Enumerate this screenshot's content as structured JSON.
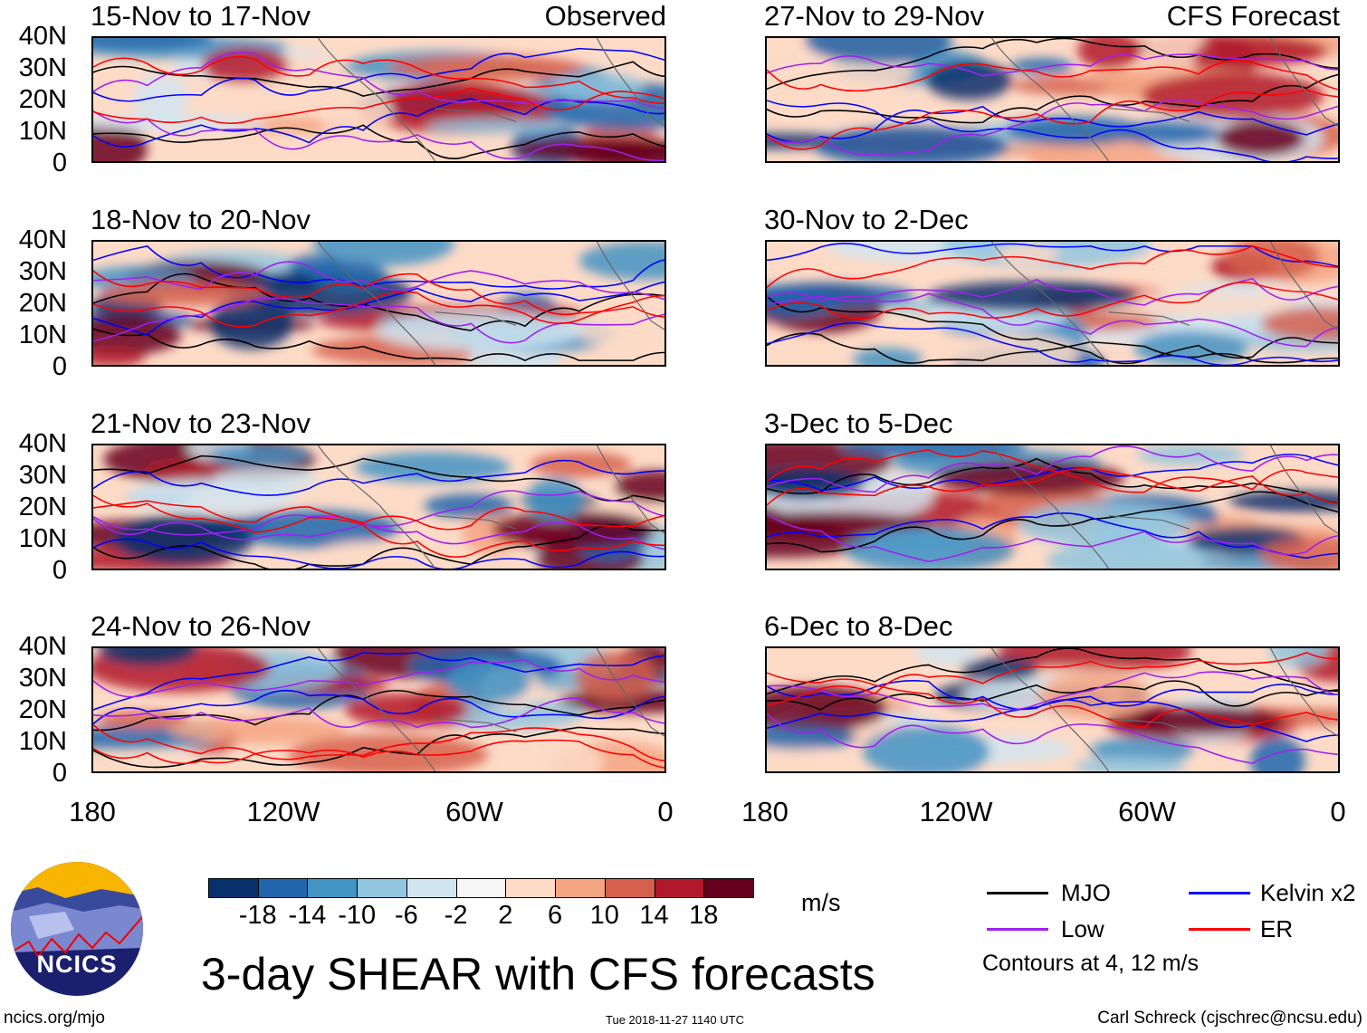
{
  "panels": [
    {
      "title": "15-Nov to 17-Nov",
      "tag": "Observed"
    },
    {
      "title": "27-Nov to 29-Nov",
      "tag": "CFS Forecast"
    },
    {
      "title": "18-Nov to 20-Nov",
      "tag": ""
    },
    {
      "title": "30-Nov to 2-Dec",
      "tag": ""
    },
    {
      "title": "21-Nov to 23-Nov",
      "tag": ""
    },
    {
      "title": "3-Dec to 5-Dec",
      "tag": ""
    },
    {
      "title": "24-Nov to 26-Nov",
      "tag": ""
    },
    {
      "title": "6-Dec to 8-Dec",
      "tag": ""
    }
  ],
  "lat_labels": [
    "40N",
    "30N",
    "20N",
    "10N",
    "0"
  ],
  "lon_labels": [
    "180",
    "120W",
    "60W",
    "0"
  ],
  "colorbar": {
    "colors": [
      "#08306b",
      "#2166ac",
      "#4393c3",
      "#92c5de",
      "#d1e5f0",
      "#f7f7f7",
      "#fddbc7",
      "#f4a582",
      "#d6604d",
      "#b2182b",
      "#67001f"
    ],
    "labels": [
      "-18",
      "-14",
      "-10",
      "-6",
      "-2",
      "2",
      "6",
      "10",
      "14",
      "18"
    ],
    "units": "m/s"
  },
  "legend": {
    "mjo": {
      "label": "MJO",
      "color": "#000000"
    },
    "kelvin": {
      "label": "Kelvin x2",
      "color": "#0000ff"
    },
    "low": {
      "label": "Low",
      "color": "#a020f0"
    },
    "er": {
      "label": "ER",
      "color": "#ff0000"
    },
    "contours": "Contours at 4, 12 m/s"
  },
  "title": "3-day SHEAR with CFS forecasts",
  "logo_text": "NCICS",
  "footer": {
    "left": "ncics.org/mjo",
    "center": "Tue 2018-11-27 1140 UTC",
    "right": "Carl Schreck (cjschrec@ncsu.edu)"
  }
}
